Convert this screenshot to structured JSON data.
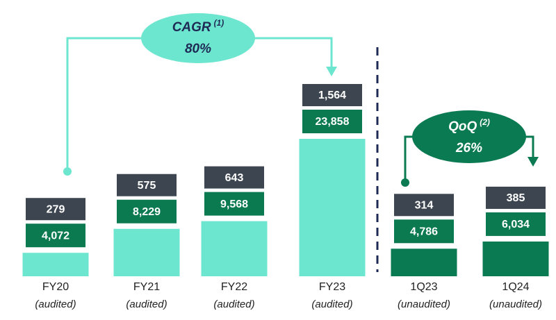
{
  "chart_data": {
    "type": "bar",
    "categories": [
      "FY20",
      "FY21",
      "FY22",
      "FY23",
      "1Q23",
      "1Q24"
    ],
    "category_notes": [
      "(audited)",
      "(audited)",
      "(audited)",
      "(audited)",
      "(unaudited)",
      "(unaudited)"
    ],
    "colors": [
      "#6de6cf",
      "#6de6cf",
      "#6de6cf",
      "#6de6cf",
      "#0a7a52",
      "#0a7a52"
    ],
    "series": [
      {
        "color": "#0b7a50",
        "values": [
          4072,
          8229,
          9568,
          23858,
          4786,
          6034
        ],
        "value_labels": [
          "4,072",
          "8,229",
          "9,568",
          "23,858",
          "4,786",
          "6,034"
        ]
      },
      {
        "color": "#3d4650",
        "values": [
          279,
          575,
          643,
          1564,
          314,
          385
        ],
        "value_labels": [
          "279",
          "575",
          "643",
          "1,564",
          "314",
          "385"
        ]
      }
    ],
    "annotations": [
      {
        "label": "CAGR",
        "note": "(1)",
        "value": "80%"
      },
      {
        "label": "QoQ",
        "note": "(2)",
        "value": "26%"
      }
    ]
  }
}
